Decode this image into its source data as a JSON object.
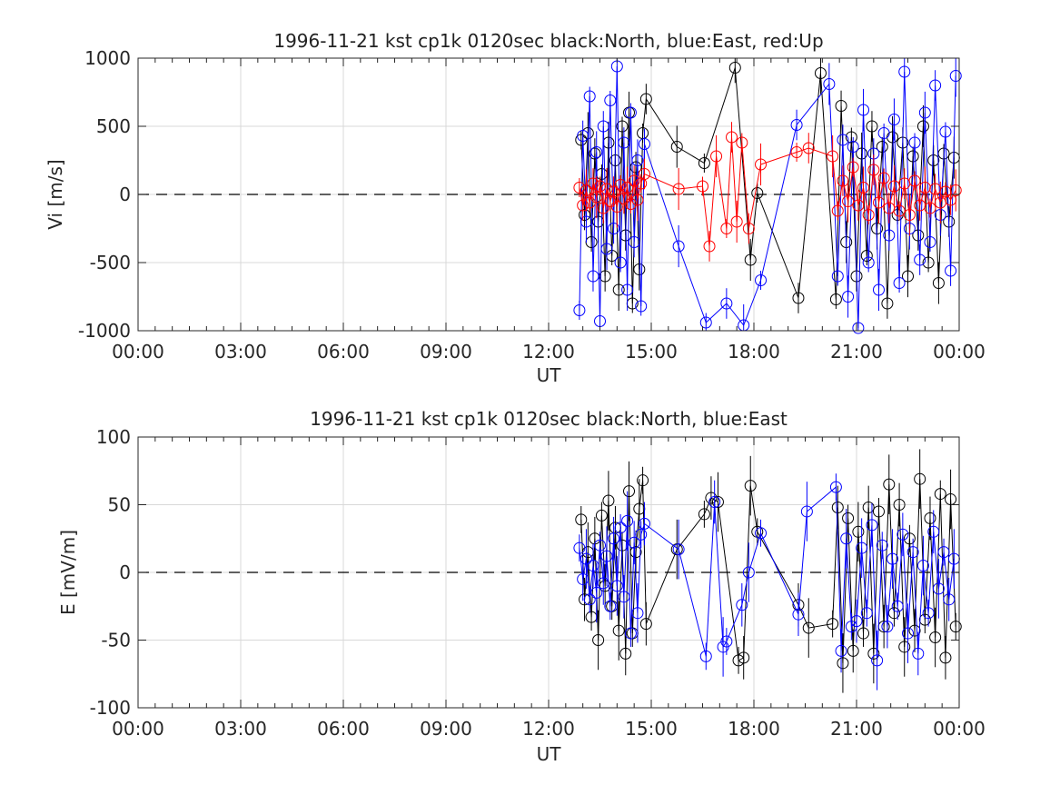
{
  "chart_data": [
    {
      "type": "line",
      "title": "1996-11-21 kst cp1k 0120sec black:North, blue:East, red:Up",
      "xlabel": "UT",
      "ylabel": "Vi [m/s]",
      "xlim": [
        0,
        24
      ],
      "ylim": [
        -1000,
        1000
      ],
      "xticks": [
        "00:00",
        "03:00",
        "06:00",
        "09:00",
        "12:00",
        "15:00",
        "18:00",
        "21:00",
        "00:00"
      ],
      "yticks": [
        "1000",
        "500",
        "0",
        "-500",
        "-1000"
      ],
      "ytick_values": [
        1000,
        500,
        0,
        -500,
        -1000
      ],
      "grid": true,
      "series": [
        {
          "name": "North",
          "color": "#000000",
          "x": [
            12.95,
            13.05,
            13.15,
            13.25,
            13.35,
            13.45,
            13.55,
            13.65,
            13.75,
            13.85,
            13.95,
            14.05,
            14.15,
            14.25,
            14.35,
            14.45,
            14.55,
            14.65,
            14.75,
            14.85,
            15.75,
            16.55,
            17.45,
            17.9,
            18.1,
            19.3,
            19.95,
            20.4,
            20.55,
            20.7,
            20.85,
            21.0,
            21.15,
            21.3,
            21.45,
            21.6,
            21.75,
            21.9,
            22.05,
            22.2,
            22.35,
            22.5,
            22.65,
            22.8,
            22.95,
            23.1,
            23.25,
            23.4,
            23.55,
            23.7,
            23.85
          ],
          "y": [
            400,
            -150,
            450,
            -350,
            300,
            -200,
            150,
            -600,
            380,
            -450,
            250,
            -700,
            500,
            -300,
            600,
            -800,
            200,
            -550,
            450,
            700,
            350,
            230,
            930,
            -480,
            10,
            -760,
            890,
            -770,
            650,
            -350,
            420,
            -600,
            300,
            -450,
            500,
            -250,
            350,
            -800,
            420,
            -150,
            380,
            -600,
            280,
            -300,
            500,
            -500,
            250,
            -650,
            300,
            -200,
            270
          ]
        },
        {
          "name": "East",
          "color": "#0000ff",
          "x": [
            12.9,
            13.0,
            13.1,
            13.2,
            13.3,
            13.4,
            13.5,
            13.6,
            13.7,
            13.8,
            13.9,
            14.0,
            14.1,
            14.2,
            14.3,
            14.4,
            14.5,
            14.6,
            14.7,
            14.8,
            15.8,
            16.6,
            17.2,
            17.7,
            18.2,
            19.25,
            20.2,
            20.45,
            20.6,
            20.75,
            20.9,
            21.05,
            21.2,
            21.35,
            21.5,
            21.65,
            21.8,
            21.95,
            22.1,
            22.25,
            22.4,
            22.55,
            22.7,
            22.85,
            23.0,
            23.15,
            23.3,
            23.45,
            23.6,
            23.75,
            23.9
          ],
          "y": [
            -850,
            430,
            -200,
            720,
            -600,
            310,
            -930,
            500,
            -400,
            690,
            -250,
            940,
            -500,
            380,
            -700,
            600,
            -350,
            250,
            -820,
            370,
            -380,
            -940,
            -800,
            -960,
            -630,
            510,
            810,
            -600,
            400,
            -750,
            350,
            -980,
            620,
            -500,
            300,
            -700,
            450,
            -300,
            550,
            -650,
            900,
            -250,
            380,
            -480,
            600,
            -350,
            800,
            -150,
            460,
            -560,
            870
          ]
        },
        {
          "name": "Up",
          "color": "#ff0000",
          "x": [
            12.9,
            13.0,
            13.1,
            13.2,
            13.3,
            13.4,
            13.5,
            13.6,
            13.7,
            13.8,
            13.9,
            14.0,
            14.1,
            14.2,
            14.3,
            14.4,
            14.5,
            14.6,
            14.7,
            14.8,
            15.8,
            16.5,
            16.7,
            16.9,
            17.2,
            17.35,
            17.5,
            17.65,
            17.85,
            18.2,
            19.25,
            19.6,
            20.3,
            20.45,
            20.6,
            20.75,
            20.9,
            21.05,
            21.2,
            21.35,
            21.5,
            21.65,
            21.8,
            21.95,
            22.1,
            22.25,
            22.4,
            22.55,
            22.7,
            22.85,
            23.0,
            23.15,
            23.3,
            23.45,
            23.6,
            23.75,
            23.9
          ],
          "y": [
            50,
            -80,
            30,
            -60,
            80,
            -20,
            60,
            -100,
            40,
            -50,
            20,
            -90,
            70,
            -30,
            50,
            -70,
            100,
            -40,
            80,
            150,
            40,
            60,
            -380,
            280,
            -250,
            420,
            -200,
            380,
            -250,
            220,
            310,
            340,
            280,
            -120,
            100,
            -50,
            200,
            -80,
            50,
            -150,
            180,
            -60,
            120,
            -100,
            60,
            -120,
            80,
            -150,
            100,
            -80,
            50,
            -100,
            40,
            -60,
            20,
            -40,
            30
          ]
        }
      ]
    },
    {
      "type": "line",
      "title": "1996-11-21 kst cp1k 0120sec black:North, blue:East",
      "xlabel": "UT",
      "ylabel": "E [mV/m]",
      "xlim": [
        0,
        24
      ],
      "ylim": [
        -100,
        100
      ],
      "xticks": [
        "00:00",
        "03:00",
        "06:00",
        "09:00",
        "12:00",
        "15:00",
        "18:00",
        "21:00",
        "00:00"
      ],
      "yticks": [
        "100",
        "50",
        "0",
        "-50",
        "-100"
      ],
      "ytick_values": [
        100,
        50,
        0,
        -50,
        -100
      ],
      "grid": true,
      "series": [
        {
          "name": "North",
          "color": "#000000",
          "x": [
            12.95,
            13.05,
            13.15,
            13.25,
            13.35,
            13.45,
            13.55,
            13.65,
            13.75,
            13.85,
            13.95,
            14.05,
            14.15,
            14.25,
            14.35,
            14.45,
            14.55,
            14.65,
            14.75,
            14.85,
            15.75,
            16.55,
            16.75,
            16.95,
            17.55,
            17.7,
            17.9,
            18.1,
            19.3,
            19.6,
            20.3,
            20.45,
            20.6,
            20.75,
            20.9,
            21.05,
            21.2,
            21.35,
            21.5,
            21.65,
            21.8,
            21.95,
            22.1,
            22.25,
            22.4,
            22.55,
            22.7,
            22.85,
            23.0,
            23.15,
            23.3,
            23.45,
            23.6,
            23.75,
            23.9
          ],
          "y": [
            39,
            -20,
            15,
            -33,
            25,
            -50,
            42,
            -10,
            53,
            -25,
            33,
            -43,
            20,
            -60,
            60,
            -45,
            15,
            47,
            68,
            -38,
            17,
            43,
            55,
            52,
            -65,
            -63,
            64,
            30,
            -24,
            -41,
            -38,
            48,
            -67,
            40,
            -58,
            30,
            -45,
            48,
            -60,
            45,
            -40,
            65,
            -30,
            50,
            -55,
            25,
            -43,
            69,
            -35,
            40,
            -48,
            58,
            -63,
            54,
            -40
          ]
        },
        {
          "name": "East",
          "color": "#0000ff",
          "x": [
            12.9,
            13.0,
            13.1,
            13.2,
            13.3,
            13.4,
            13.5,
            13.6,
            13.7,
            13.8,
            13.9,
            14.0,
            14.1,
            14.2,
            14.3,
            14.4,
            14.5,
            14.6,
            14.7,
            14.8,
            15.8,
            16.6,
            16.85,
            17.1,
            17.2,
            17.65,
            17.85,
            18.2,
            19.3,
            19.55,
            20.4,
            20.55,
            20.7,
            20.85,
            21.0,
            21.15,
            21.3,
            21.45,
            21.6,
            21.75,
            21.9,
            22.05,
            22.2,
            22.35,
            22.5,
            22.65,
            22.8,
            22.95,
            23.1,
            23.25,
            23.4,
            23.55,
            23.7,
            23.85
          ],
          "y": [
            18,
            -5,
            10,
            -20,
            5,
            -15,
            20,
            -8,
            12,
            -25,
            25,
            -10,
            33,
            -18,
            38,
            -45,
            22,
            -30,
            28,
            36,
            17,
            -62,
            52,
            -55,
            -51,
            -24,
            0,
            29,
            -31,
            45,
            63,
            -58,
            25,
            -40,
            -36,
            18,
            -30,
            35,
            -65,
            20,
            -40,
            10,
            -25,
            28,
            -45,
            15,
            -60,
            5,
            -30,
            30,
            -12,
            15,
            -20,
            10
          ]
        }
      ]
    }
  ]
}
